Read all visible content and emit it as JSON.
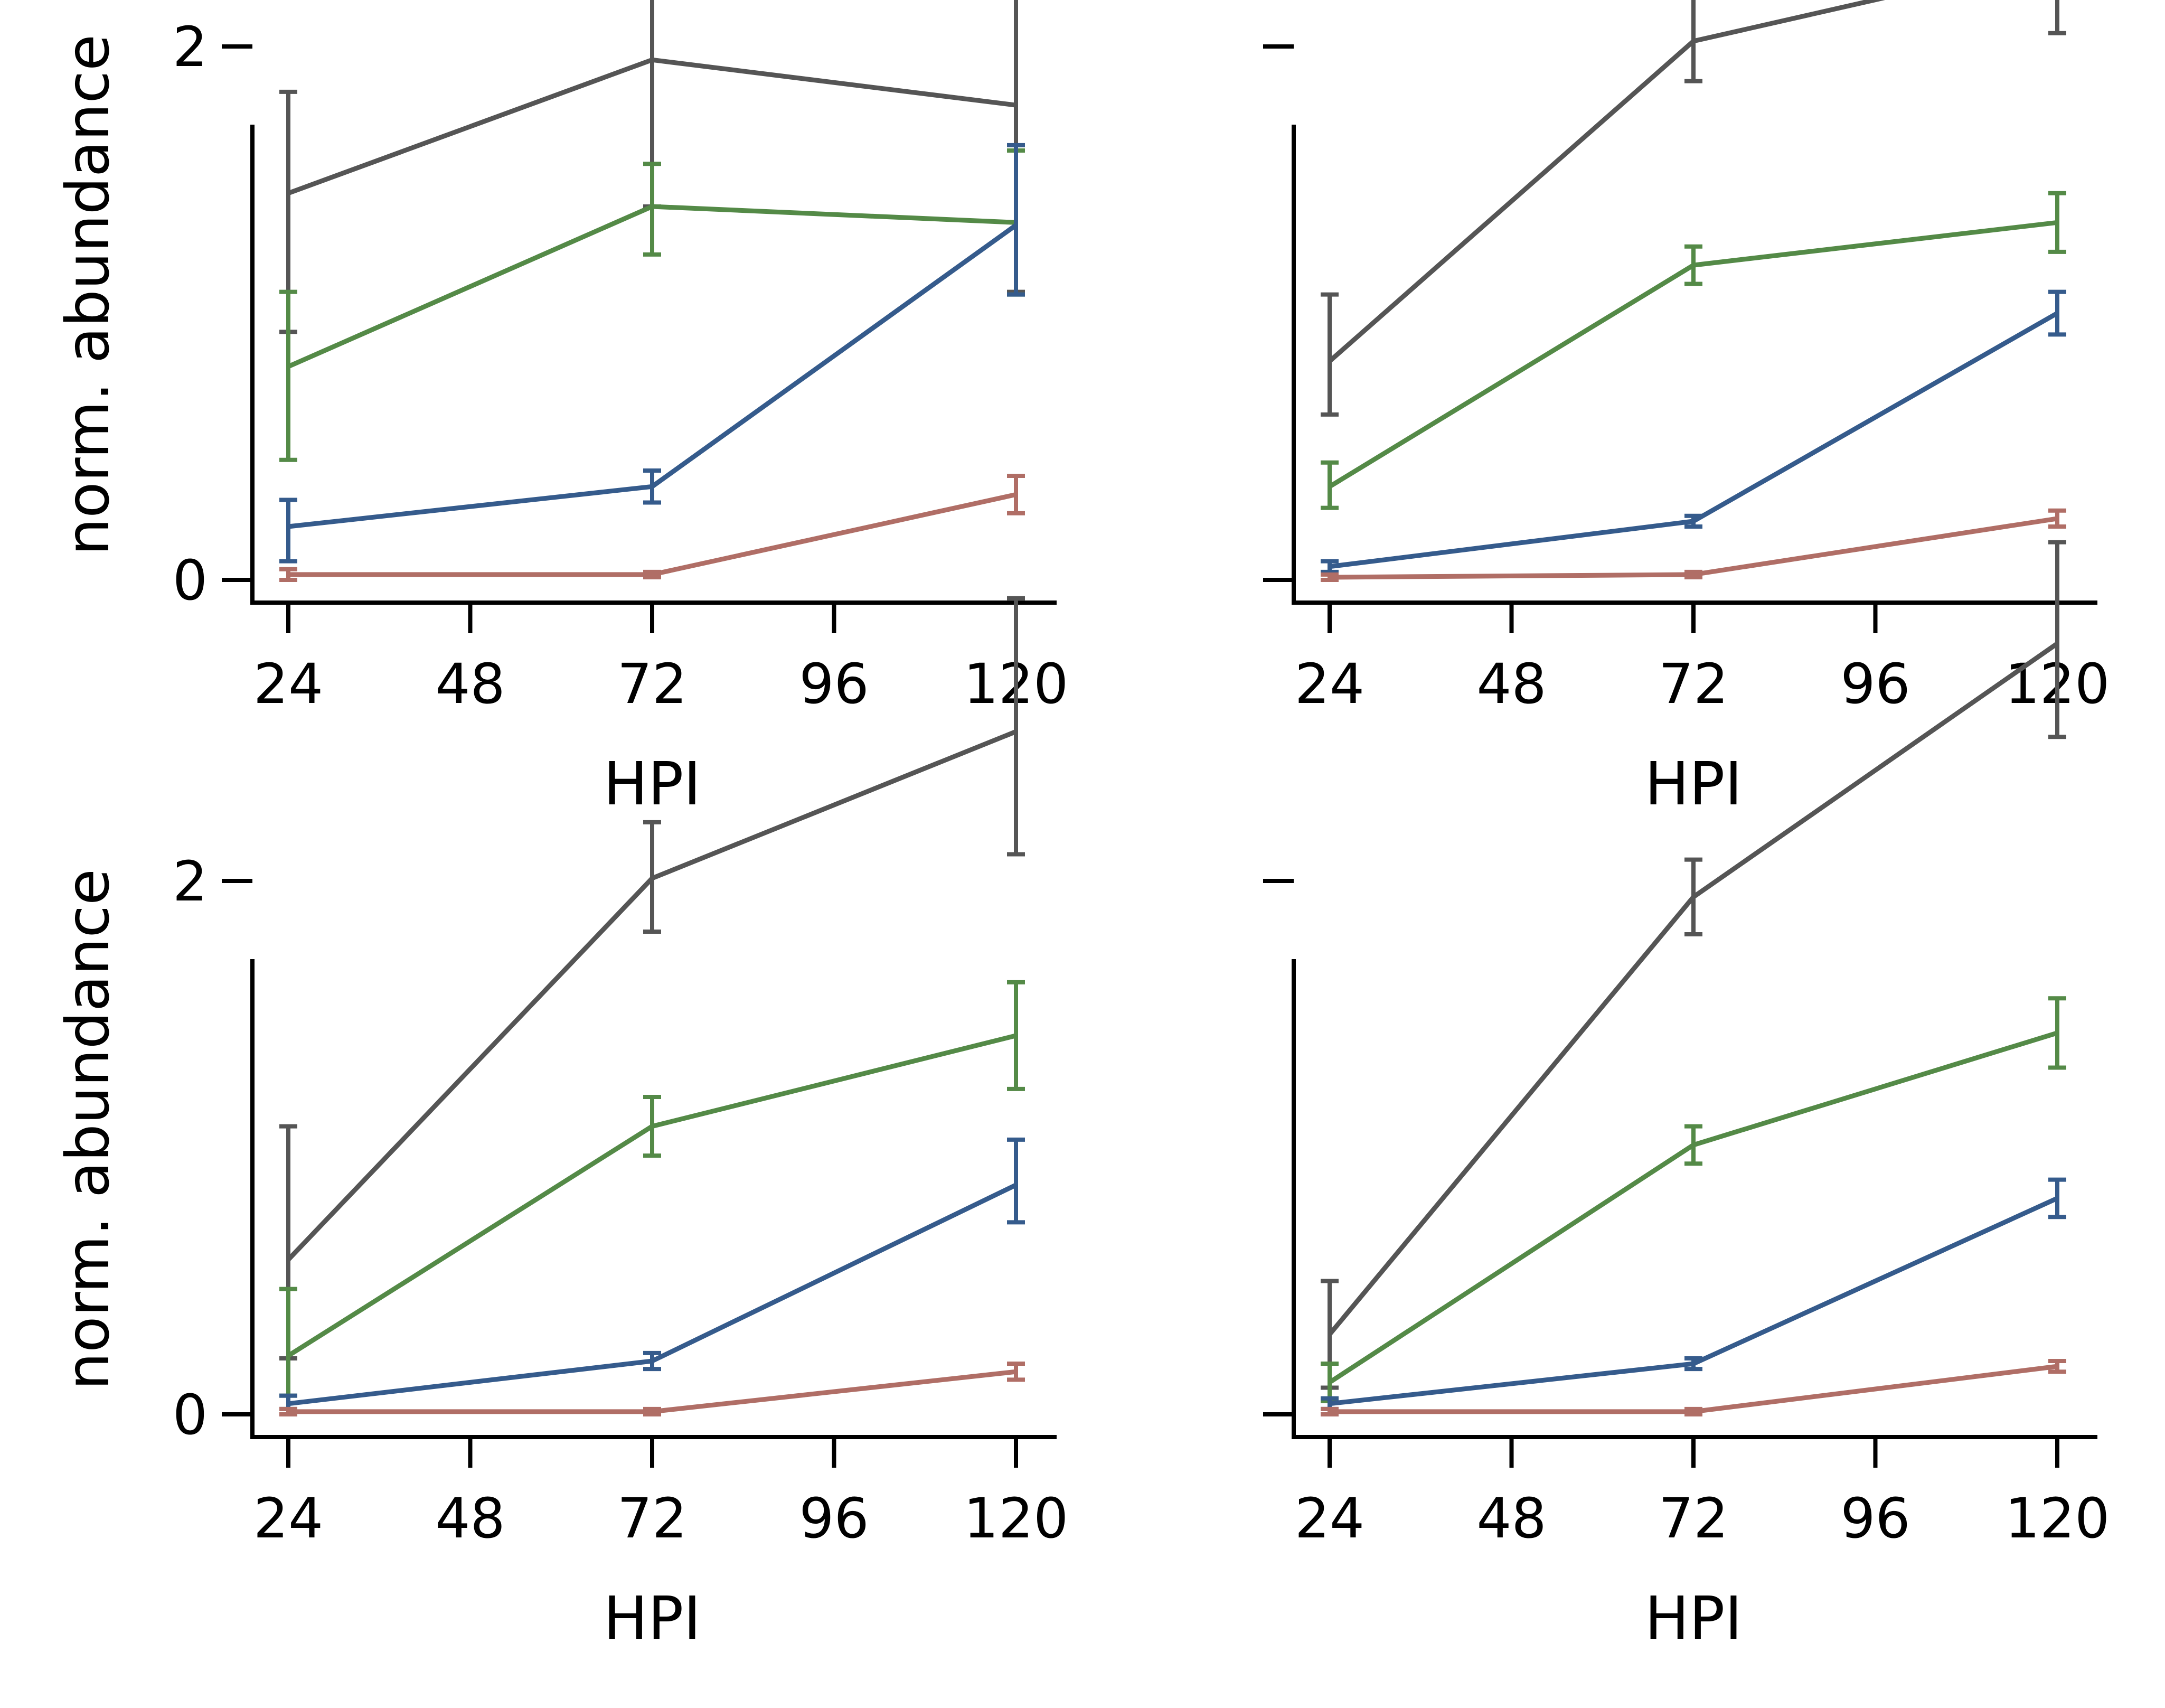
{
  "figure": {
    "series_colors": [
      "#555555",
      "#548a47",
      "#355b8c",
      "#b06e66"
    ]
  },
  "chart_data": [
    {
      "type": "line",
      "panel": "top-left",
      "xlabel": "HPI",
      "ylabel": "norm. abundance",
      "xticks": [
        24,
        48,
        72,
        96,
        120
      ],
      "yticks": [
        0,
        2
      ],
      "xlim": [
        19,
        124
      ],
      "ylim": [
        -0.18,
        3.42
      ],
      "x": [
        24,
        72,
        120
      ],
      "series": [
        {
          "color": "#555555",
          "values": [
            1.45,
            1.95,
            1.78
          ],
          "err_low": [
            0.52,
            0.55,
            0.7
          ],
          "err_high": [
            0.38,
            0.55,
            0.92
          ]
        },
        {
          "color": "#548a47",
          "values": [
            0.8,
            1.4,
            1.34
          ],
          "err_low": [
            0.35,
            0.18,
            0.27
          ],
          "err_high": [
            0.28,
            0.16,
            0.27
          ]
        },
        {
          "color": "#355b8c",
          "values": [
            0.2,
            0.35,
            1.33
          ],
          "err_low": [
            0.13,
            0.06,
            0.26
          ],
          "err_high": [
            0.1,
            0.06,
            0.3
          ]
        },
        {
          "color": "#b06e66",
          "values": [
            0.02,
            0.02,
            0.32
          ],
          "err_low": [
            0.02,
            0.01,
            0.07
          ],
          "err_high": [
            0.02,
            0.01,
            0.07
          ]
        }
      ]
    },
    {
      "type": "line",
      "panel": "top-right",
      "xlabel": "HPI",
      "ylabel": "",
      "xticks": [
        24,
        48,
        72,
        96,
        120
      ],
      "yticks": [
        0,
        2
      ],
      "xlim": [
        19,
        124
      ],
      "ylim": [
        -0.18,
        3.42
      ],
      "x": [
        24,
        72,
        120
      ],
      "series": [
        {
          "color": "#555555",
          "values": [
            0.82,
            2.02,
            2.33
          ],
          "err_low": [
            0.2,
            0.15,
            0.28
          ],
          "err_high": [
            0.25,
            0.17,
            0.28
          ]
        },
        {
          "color": "#548a47",
          "values": [
            0.35,
            1.18,
            1.34
          ],
          "err_low": [
            0.08,
            0.07,
            0.11
          ],
          "err_high": [
            0.09,
            0.07,
            0.11
          ]
        },
        {
          "color": "#355b8c",
          "values": [
            0.05,
            0.22,
            1.0
          ],
          "err_low": [
            0.02,
            0.02,
            0.08
          ],
          "err_high": [
            0.02,
            0.02,
            0.08
          ]
        },
        {
          "color": "#b06e66",
          "values": [
            0.01,
            0.02,
            0.23
          ],
          "err_low": [
            0.01,
            0.01,
            0.03
          ],
          "err_high": [
            0.01,
            0.01,
            0.03
          ]
        }
      ]
    },
    {
      "type": "line",
      "panel": "bottom-left",
      "xlabel": "HPI",
      "ylabel": "norm. abundance",
      "xticks": [
        24,
        48,
        72,
        96,
        120
      ],
      "yticks": [
        0,
        2
      ],
      "xlim": [
        19,
        124
      ],
      "ylim": [
        -0.18,
        3.42
      ],
      "x": [
        24,
        72,
        120
      ],
      "series": [
        {
          "color": "#555555",
          "values": [
            0.58,
            2.01,
            2.56
          ],
          "err_low": [
            0.37,
            0.2,
            0.46
          ],
          "err_high": [
            0.5,
            0.21,
            0.5
          ]
        },
        {
          "color": "#548a47",
          "values": [
            0.22,
            1.08,
            1.42
          ],
          "err_low": [
            0.15,
            0.11,
            0.2
          ],
          "err_high": [
            0.25,
            0.11,
            0.2
          ]
        },
        {
          "color": "#355b8c",
          "values": [
            0.04,
            0.2,
            0.86
          ],
          "err_low": [
            0.02,
            0.03,
            0.14
          ],
          "err_high": [
            0.03,
            0.03,
            0.17
          ]
        },
        {
          "color": "#b06e66",
          "values": [
            0.01,
            0.01,
            0.16
          ],
          "err_low": [
            0.01,
            0.01,
            0.03
          ],
          "err_high": [
            0.01,
            0.01,
            0.03
          ]
        }
      ]
    },
    {
      "type": "line",
      "panel": "bottom-right",
      "xlabel": "HPI",
      "ylabel": "",
      "xticks": [
        24,
        48,
        72,
        96,
        120
      ],
      "yticks": [
        0,
        2
      ],
      "xlim": [
        19,
        124
      ],
      "ylim": [
        -0.18,
        3.42
      ],
      "x": [
        24,
        72,
        120
      ],
      "series": [
        {
          "color": "#555555",
          "values": [
            0.3,
            1.94,
            2.89
          ],
          "err_low": [
            0.2,
            0.14,
            0.35
          ],
          "err_high": [
            0.2,
            0.14,
            0.38
          ]
        },
        {
          "color": "#548a47",
          "values": [
            0.12,
            1.01,
            1.43
          ],
          "err_low": [
            0.07,
            0.07,
            0.13
          ],
          "err_high": [
            0.07,
            0.07,
            0.13
          ]
        },
        {
          "color": "#355b8c",
          "values": [
            0.04,
            0.19,
            0.81
          ],
          "err_low": [
            0.02,
            0.02,
            0.07
          ],
          "err_high": [
            0.02,
            0.02,
            0.07
          ]
        },
        {
          "color": "#b06e66",
          "values": [
            0.01,
            0.01,
            0.18
          ],
          "err_low": [
            0.01,
            0.01,
            0.02
          ],
          "err_high": [
            0.01,
            0.01,
            0.02
          ]
        }
      ]
    }
  ]
}
